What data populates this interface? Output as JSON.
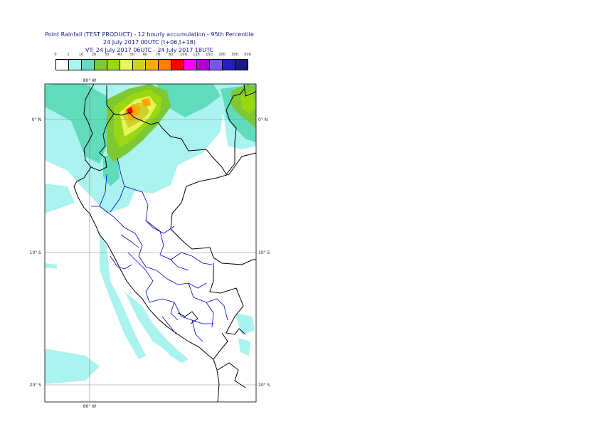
{
  "title": {
    "line1": "Point Rainfall (TEST PRODUCT) - 12 hourly accumulation - 95th Percentile",
    "line2": "24 July 2017 00UTC (t+06,t+18)",
    "line3": "VT: 24 July 2017 06UTC - 24 July 2017 18UTC"
  },
  "legend": {
    "ticks": [
      "0",
      "1",
      "10",
      "20",
      "30",
      "40",
      "50",
      "60",
      "70",
      "80",
      "100",
      "125",
      "150",
      "200",
      "300",
      "500"
    ],
    "colors": [
      "#ffffff",
      "#aaf3ee",
      "#60dcbc",
      "#7ec832",
      "#99d813",
      "#e6f55a",
      "#cfd12b",
      "#ffaa00",
      "#ff7f00",
      "#ff0000",
      "#ff00ff",
      "#b000cc",
      "#7a55ee",
      "#2222bb",
      "#1a1a8a",
      "#0a0a55"
    ]
  },
  "grid": {
    "lon_top": "80° W",
    "lon_bottom": "80° W",
    "lat_0_left": "0° N",
    "lat_0_right": "0° N",
    "lat_10_left": "10° S",
    "lat_10_right": "10° S",
    "lat_20_left": "20° S",
    "lat_20_right": "20° S"
  }
}
